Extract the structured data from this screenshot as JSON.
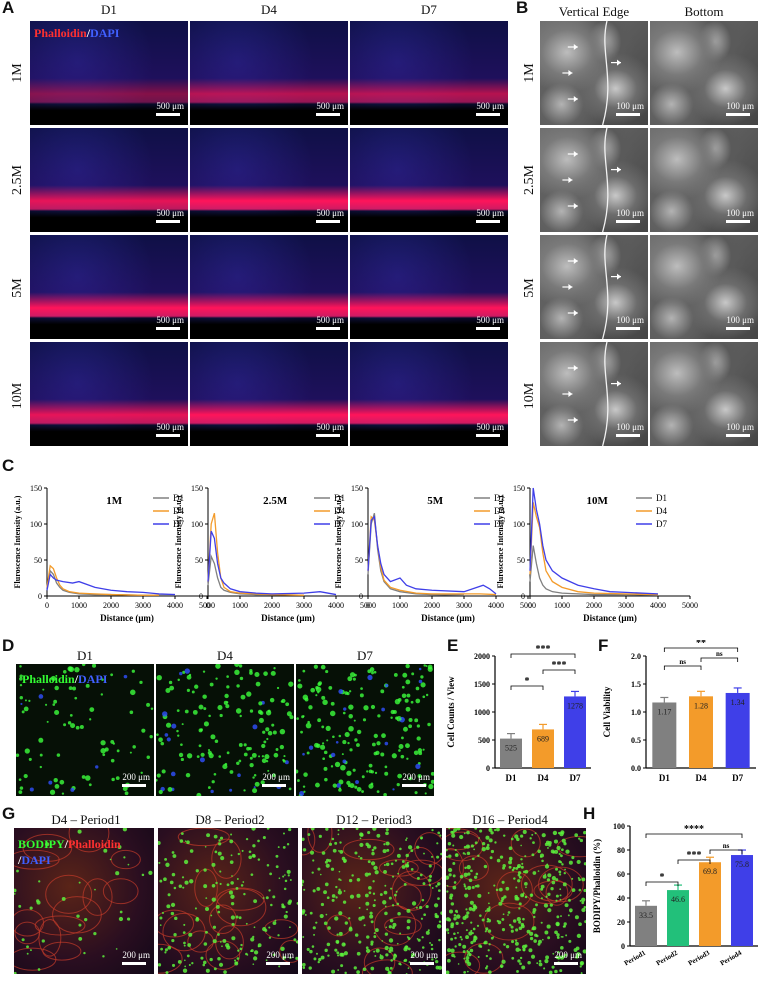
{
  "panels": {
    "A": "A",
    "B": "B",
    "C": "C",
    "D": "D",
    "E": "E",
    "F": "F",
    "G": "G",
    "H": "H"
  },
  "panelA": {
    "columns": [
      "D1",
      "D4",
      "D7"
    ],
    "rows": [
      "1M",
      "2.5M",
      "5M",
      "10M"
    ],
    "stain_red": "Phalloidin",
    "stain_sep": "/",
    "stain_blue": "DAPI",
    "scale": "500 μm"
  },
  "panelB": {
    "columns": [
      "Vertical Edge",
      "Bottom"
    ],
    "rows": [
      "1M",
      "2.5M",
      "5M",
      "10M"
    ],
    "scale": "100 μm"
  },
  "panelC": {
    "ylabel": "Fluroscence Intensity (a.u.)",
    "xlabel": "Distance (μm)",
    "legend": [
      "D1",
      "D4",
      "D7"
    ],
    "titles": [
      "1M",
      "2.5M",
      "5M",
      "10M"
    ]
  },
  "panelD": {
    "columns": [
      "D1",
      "D4",
      "D7"
    ],
    "stain_green": "Phalloidin",
    "stain_sep": "/",
    "stain_blue": "DAPI",
    "scale": "200 μm"
  },
  "panelG": {
    "columns": [
      "D4 – Period1",
      "D8 – Period2",
      "D12 – Period3",
      "D16 – Period4"
    ],
    "stain_green": "BODIPY",
    "stain_sep1": "/",
    "stain_red": "Phalloidin",
    "stain_sep2": "/",
    "stain_blue": "DAPI",
    "scale": "200 μm"
  },
  "colors": {
    "D1": "#808080",
    "D4": "#f39b2a",
    "D7": "#3f3fe8",
    "period2": "#22c07a"
  },
  "chart_data": [
    {
      "type": "line",
      "panel": "C",
      "title": "1M",
      "xlabel": "Distance (μm)",
      "ylabel": "Fluroscence Intensity (a.u.)",
      "xlim": [
        0,
        5000
      ],
      "ylim": [
        0,
        150
      ],
      "xticks": [
        0,
        1000,
        2000,
        3000,
        4000,
        5000
      ],
      "yticks": [
        0,
        50,
        100,
        150
      ],
      "series": [
        {
          "name": "D1",
          "x": [
            0,
            100,
            200,
            300,
            400,
            500,
            700,
            1000,
            1500,
            2000,
            3000,
            4000
          ],
          "y": [
            10,
            35,
            30,
            18,
            12,
            8,
            5,
            3,
            2,
            2,
            1,
            1
          ]
        },
        {
          "name": "D4",
          "x": [
            0,
            100,
            200,
            300,
            400,
            500,
            700,
            1000,
            1500,
            2000,
            3000,
            3500
          ],
          "y": [
            12,
            42,
            38,
            25,
            15,
            10,
            6,
            4,
            3,
            2,
            1,
            1
          ]
        },
        {
          "name": "D7",
          "x": [
            0,
            100,
            200,
            300,
            500,
            800,
            1000,
            1500,
            2000,
            2500,
            3000,
            3500,
            4000
          ],
          "y": [
            8,
            30,
            25,
            22,
            20,
            18,
            20,
            12,
            8,
            6,
            5,
            3,
            2
          ]
        }
      ]
    },
    {
      "type": "line",
      "panel": "C",
      "title": "2.5M",
      "xlabel": "Distance (μm)",
      "ylabel": "Fluroscence Intensity (a.u.)",
      "xlim": [
        0,
        5000
      ],
      "ylim": [
        0,
        150
      ],
      "xticks": [
        0,
        1000,
        2000,
        3000,
        4000,
        5000
      ],
      "yticks": [
        0,
        50,
        100,
        150
      ],
      "series": [
        {
          "name": "D1",
          "x": [
            0,
            100,
            200,
            300,
            400,
            500,
            700,
            1000,
            1500,
            2000,
            3000
          ],
          "y": [
            15,
            55,
            45,
            25,
            12,
            8,
            5,
            3,
            2,
            2,
            1
          ]
        },
        {
          "name": "D4",
          "x": [
            0,
            100,
            200,
            300,
            400,
            500,
            700,
            1000,
            1500,
            2000,
            3000
          ],
          "y": [
            20,
            100,
            115,
            60,
            25,
            12,
            6,
            4,
            3,
            2,
            1
          ]
        },
        {
          "name": "D7",
          "x": [
            0,
            100,
            200,
            300,
            400,
            500,
            700,
            1000,
            1500,
            2000,
            3000,
            3500,
            4000
          ],
          "y": [
            20,
            90,
            80,
            45,
            25,
            18,
            10,
            6,
            4,
            3,
            4,
            6,
            2
          ]
        }
      ]
    },
    {
      "type": "line",
      "panel": "C",
      "title": "5M",
      "xlabel": "Distance (μm)",
      "ylabel": "Fluroscence Intensity (a.u.)",
      "xlim": [
        0,
        5000
      ],
      "ylim": [
        0,
        150
      ],
      "xticks": [
        0,
        1000,
        2000,
        3000,
        4000,
        5000
      ],
      "yticks": [
        0,
        50,
        100,
        150
      ],
      "series": [
        {
          "name": "D1",
          "x": [
            0,
            100,
            200,
            300,
            400,
            500,
            700,
            1000,
            1500,
            2000,
            3000
          ],
          "y": [
            30,
            100,
            115,
            65,
            35,
            20,
            10,
            6,
            3,
            2,
            1
          ]
        },
        {
          "name": "D4",
          "x": [
            0,
            100,
            200,
            300,
            400,
            500,
            700,
            1000,
            1500,
            2000,
            3000,
            3500,
            4000
          ],
          "y": [
            35,
            110,
            105,
            70,
            40,
            22,
            12,
            8,
            4,
            3,
            3,
            3,
            2
          ]
        },
        {
          "name": "D7",
          "x": [
            0,
            100,
            200,
            300,
            400,
            500,
            700,
            1000,
            1200,
            1500,
            2000,
            3000,
            3600,
            3800,
            4000
          ],
          "y": [
            35,
            105,
            110,
            70,
            45,
            30,
            20,
            25,
            15,
            10,
            8,
            6,
            15,
            10,
            3
          ]
        }
      ]
    },
    {
      "type": "line",
      "panel": "C",
      "title": "10M",
      "xlabel": "Distance (μm)",
      "ylabel": "Fluroscence Intensity (a.u.)",
      "xlim": [
        0,
        5000
      ],
      "ylim": [
        0,
        150
      ],
      "xticks": [
        0,
        1000,
        2000,
        3000,
        4000,
        5000
      ],
      "yticks": [
        0,
        50,
        100,
        150
      ],
      "series": [
        {
          "name": "D1",
          "x": [
            0,
            100,
            200,
            300,
            400,
            500,
            700,
            1000,
            1500,
            2000,
            3000,
            4000
          ],
          "y": [
            20,
            70,
            45,
            25,
            15,
            10,
            6,
            4,
            3,
            2,
            2,
            1
          ]
        },
        {
          "name": "D4",
          "x": [
            0,
            100,
            200,
            300,
            400,
            500,
            700,
            1000,
            1500,
            2000,
            3000,
            4000
          ],
          "y": [
            30,
            130,
            110,
            95,
            60,
            35,
            20,
            12,
            6,
            4,
            3,
            2
          ]
        },
        {
          "name": "D7",
          "x": [
            0,
            100,
            200,
            300,
            400,
            500,
            700,
            1000,
            1500,
            2000,
            2500,
            3000,
            4000
          ],
          "y": [
            35,
            150,
            120,
            100,
            70,
            50,
            35,
            25,
            15,
            10,
            6,
            5,
            3
          ]
        }
      ]
    },
    {
      "type": "bar",
      "panel": "E",
      "ylabel": "Cell Counts / View",
      "categories": [
        "D1",
        "D4",
        "D7"
      ],
      "values": [
        525,
        689,
        1278
      ],
      "ylim": [
        0,
        2000
      ],
      "yticks": [
        0,
        500,
        1000,
        1500,
        2000
      ],
      "significance": [
        {
          "pair": [
            "D1",
            "D4"
          ],
          "label": "*"
        },
        {
          "pair": [
            "D4",
            "D7"
          ],
          "label": "***"
        },
        {
          "pair": [
            "D1",
            "D7"
          ],
          "label": "***"
        }
      ]
    },
    {
      "type": "bar",
      "panel": "F",
      "ylabel": "Cell Viability",
      "categories": [
        "D1",
        "D4",
        "D7"
      ],
      "values": [
        1.17,
        1.28,
        1.34
      ],
      "ylim": [
        0,
        2.0
      ],
      "yticks": [
        0.0,
        0.5,
        1.0,
        1.5,
        2.0
      ],
      "significance": [
        {
          "pair": [
            "D1",
            "D4"
          ],
          "label": "ns"
        },
        {
          "pair": [
            "D4",
            "D7"
          ],
          "label": "ns"
        },
        {
          "pair": [
            "D1",
            "D7"
          ],
          "label": "**"
        }
      ]
    },
    {
      "type": "bar",
      "panel": "H",
      "ylabel": "BODIPY/Phalloidin (%)",
      "categories": [
        "Period1",
        "Period2",
        "Period3",
        "Period4"
      ],
      "values": [
        33.5,
        46.6,
        69.8,
        75.8
      ],
      "ylim": [
        0,
        100
      ],
      "yticks": [
        0,
        20,
        40,
        60,
        80,
        100
      ],
      "significance": [
        {
          "pair": [
            "Period1",
            "Period2"
          ],
          "label": "*"
        },
        {
          "pair": [
            "Period2",
            "Period3"
          ],
          "label": "***"
        },
        {
          "pair": [
            "Period3",
            "Period4"
          ],
          "label": "ns"
        },
        {
          "pair": [
            "Period1",
            "Period4"
          ],
          "label": "****"
        }
      ]
    }
  ]
}
